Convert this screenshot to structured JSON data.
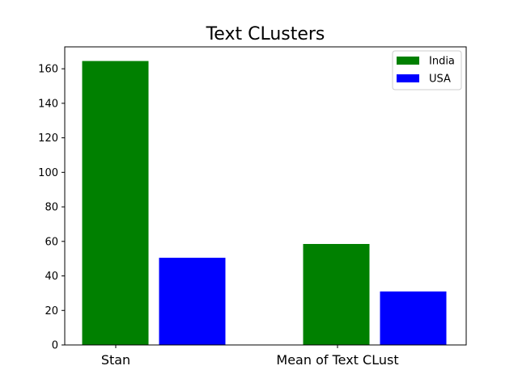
{
  "chart_data": {
    "type": "bar",
    "title": "Text CLusters",
    "categories": [
      "Stan",
      "Mean of Text CLust"
    ],
    "series": [
      {
        "name": "India",
        "values": [
          164.5,
          58.5
        ],
        "color": "#008000"
      },
      {
        "name": "USA",
        "values": [
          50.5,
          31
        ],
        "color": "#0000ff"
      }
    ],
    "yticks": [
      0,
      20,
      40,
      60,
      80,
      100,
      120,
      140,
      160
    ],
    "ylim": [
      0,
      172.7
    ],
    "legend": "top-right",
    "grid": false
  }
}
